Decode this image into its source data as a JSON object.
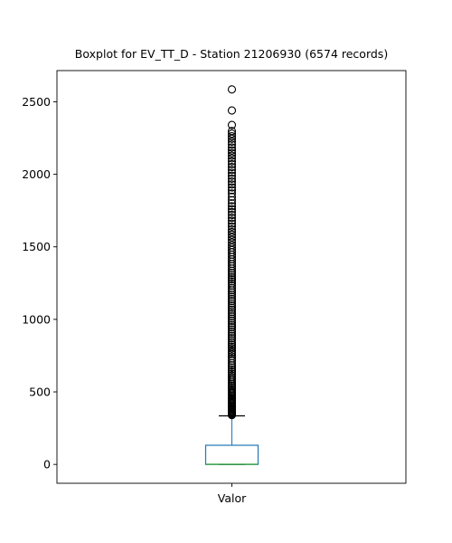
{
  "chart_data": {
    "type": "boxplot",
    "title": "Boxplot for EV_TT_D - Station 21206930 (6574 records)",
    "categories": [
      "Valor"
    ],
    "xlabel": "",
    "ylabel": "",
    "ylim": [
      -130,
      2715
    ],
    "yticks": [
      0,
      500,
      1000,
      1500,
      2000,
      2500
    ],
    "grid": false,
    "legend": "none",
    "box": {
      "q1": 0,
      "median": 1,
      "q3": 132,
      "whisker_low": 0,
      "whisker_high": 335
    },
    "outliers": [
      340,
      346,
      352,
      358,
      364,
      370,
      377,
      384,
      391,
      398,
      405,
      413,
      421,
      429,
      437,
      445,
      454,
      463,
      472,
      481,
      490,
      500,
      510,
      520,
      531,
      542,
      553,
      564,
      576,
      588,
      600,
      613,
      626,
      640,
      654,
      668,
      683,
      698,
      714,
      730,
      745,
      760,
      772,
      785,
      800,
      812,
      826,
      840,
      856,
      870,
      886,
      900,
      915,
      930,
      946,
      960,
      975,
      990,
      1005,
      1020,
      1036,
      1050,
      1066,
      1080,
      1095,
      1110,
      1126,
      1140,
      1156,
      1170,
      1186,
      1200,
      1216,
      1232,
      1248,
      1262,
      1276,
      1290,
      1305,
      1320,
      1335,
      1350,
      1366,
      1382,
      1398,
      1414,
      1430,
      1446,
      1462,
      1478,
      1495,
      1512,
      1530,
      1548,
      1566,
      1584,
      1602,
      1620,
      1640,
      1660,
      1680,
      1700,
      1720,
      1740,
      1760,
      1780,
      1800,
      1822,
      1845,
      1868,
      1890,
      1910,
      1930,
      1950,
      1970,
      1990,
      2010,
      2030,
      2050,
      2070,
      2090,
      2110,
      2128,
      2146,
      2165,
      2185,
      2205,
      2225,
      2245,
      2262,
      2280,
      2298,
      2340,
      2440,
      2585
    ],
    "colors": {
      "box": "#1f77b4",
      "median": "#2ca02c",
      "whisker": "#1f77b4",
      "cap": "#000000",
      "outlier": "#000000",
      "axis": "#000000"
    }
  }
}
